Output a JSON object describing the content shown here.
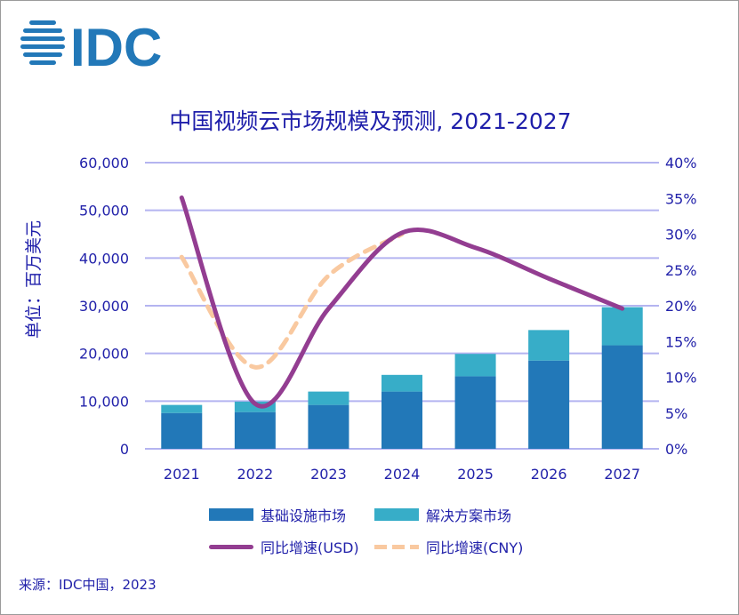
{
  "logo_text": "IDC",
  "chart_data": {
    "type": "bar+line",
    "title": "中国视频云市场规模及预测, 2021-2027",
    "ylabel": "单位：百万美元",
    "categories": [
      "2021",
      "2022",
      "2023",
      "2024",
      "2025",
      "2026",
      "2027"
    ],
    "ylim": [
      0,
      60000
    ],
    "y2lim": [
      0,
      40
    ],
    "yticks": [
      "0",
      "10,000",
      "20,000",
      "30,000",
      "40,000",
      "50,000",
      "60,000"
    ],
    "y2ticks": [
      "0%",
      "5%",
      "10%",
      "15%",
      "20%",
      "25%",
      "30%",
      "35%",
      "40%"
    ],
    "grid": true,
    "legend_position": "bottom",
    "stacked": true,
    "series": [
      {
        "name": "基础设施市场",
        "kind": "bar",
        "color": "#2278b8",
        "values": [
          7500,
          7700,
          9200,
          12000,
          15200,
          18500,
          21700
        ]
      },
      {
        "name": "解决方案市场",
        "kind": "bar",
        "color": "#37adc8",
        "values": [
          1700,
          2200,
          2800,
          3500,
          4700,
          6400,
          8000
        ]
      },
      {
        "name": "同比增速(USD)",
        "kind": "line",
        "axis": "right",
        "color": "#933d91",
        "values": [
          35.1,
          6.3,
          19.6,
          30.2,
          28.1,
          23.8,
          19.6
        ]
      },
      {
        "name": "同比增速(CNY)",
        "kind": "line",
        "axis": "right",
        "dashed": true,
        "color": "#f9c9a0",
        "values": [
          26.8,
          11.4,
          24.2,
          30.0,
          null,
          null,
          null
        ]
      }
    ]
  },
  "source": "来源：IDC中国，2023"
}
